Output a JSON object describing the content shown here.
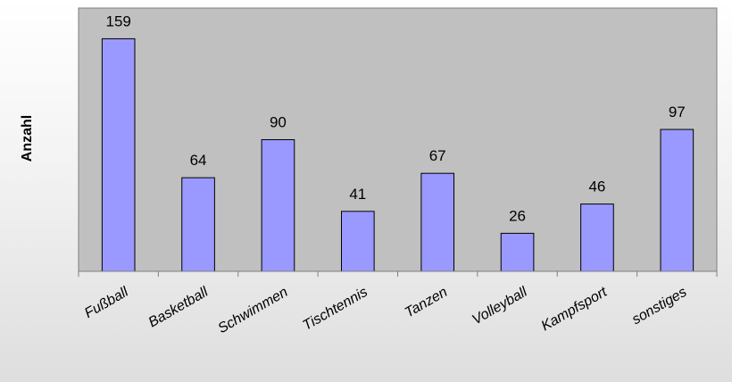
{
  "chart_data": {
    "type": "bar",
    "title": "",
    "xlabel": "",
    "ylabel": "Anzahl",
    "categories": [
      "Fußball",
      "Basketball",
      "Schwimmen",
      "Tischtennis",
      "Tanzen",
      "Volleyball",
      "Kampfsport",
      "sonstiges"
    ],
    "values": [
      159,
      64,
      90,
      41,
      67,
      26,
      46,
      97
    ],
    "data_labels": [
      "159",
      "64",
      "90",
      "41",
      "67",
      "26",
      "46",
      "97"
    ],
    "ylim": [
      0,
      180
    ],
    "grid": false,
    "legend": "none",
    "colors": {
      "bar_fill": "#9999ff",
      "bar_stroke": "#000000",
      "plot_background": "#c0c0c0",
      "plot_border": "#808080",
      "axis": "#808080"
    }
  }
}
